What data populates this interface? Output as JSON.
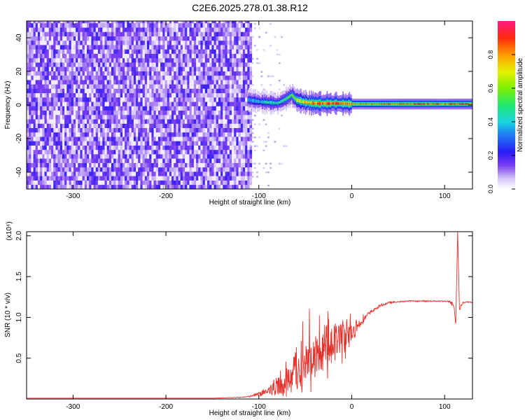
{
  "figure": {
    "title": "C2E6.2025.278.01.38.R12"
  },
  "chart_data": [
    {
      "type": "heatmap",
      "xlabel": "Height of straight line (km)",
      "ylabel": "Frequency (Hz)",
      "xlim": [
        -350,
        130
      ],
      "ylim": [
        -50,
        50
      ],
      "xticks": [
        -300,
        -200,
        -100,
        0,
        100
      ],
      "yticks": [
        -40,
        -20,
        0,
        20,
        40
      ],
      "colorbar": {
        "label": "Normalized spectral amplitude",
        "ticks": [
          "0.0",
          "0.2",
          "0.4",
          "0.6",
          "0.8"
        ],
        "range": [
          0,
          1
        ]
      },
      "noise_region_x": [
        -350,
        -110
      ],
      "ridge": {
        "x": [
          -110,
          -100,
          -90,
          -80,
          -70,
          -65,
          -60,
          -50,
          -40,
          -30,
          -20,
          -10,
          0,
          20,
          40,
          60,
          80,
          100,
          110,
          120,
          130
        ],
        "freq": [
          3,
          2,
          1.5,
          1,
          4,
          6,
          3,
          1.5,
          1,
          0.8,
          1,
          0.8,
          0.6,
          0.6,
          0.6,
          0.6,
          0.6,
          0.6,
          0.6,
          0.6,
          0.6
        ],
        "amplitude": [
          0.4,
          0.45,
          0.5,
          0.5,
          0.55,
          0.6,
          0.7,
          0.85,
          0.95,
          0.95,
          0.95,
          0.9,
          0.85,
          0.85,
          0.9,
          0.95,
          0.95,
          0.9,
          0.95,
          0.95,
          0.95
        ]
      },
      "grid": false
    },
    {
      "type": "line",
      "xlabel": "Height of straight line (km)",
      "ylabel": "SNR (10 * v/v)",
      "y_multiplier": "(x10⁴)",
      "xlim": [
        -350,
        130
      ],
      "ylim": [
        0,
        2.05
      ],
      "xticks": [
        -300,
        -200,
        -100,
        0,
        100
      ],
      "yticks": [
        0.5,
        1.0,
        1.5,
        2.0
      ],
      "color": "#e8302a",
      "series": [
        {
          "x": [
            -350,
            -300,
            -250,
            -200,
            -150,
            -120,
            -110,
            -100,
            -90,
            -80,
            -70,
            -60,
            -50,
            -40,
            -30,
            -20,
            -10,
            0,
            10,
            20,
            30,
            40,
            50,
            60,
            70,
            80,
            90,
            100,
            105,
            110,
            112,
            114,
            116,
            118,
            120,
            125,
            130
          ],
          "y": [
            0.01,
            0.01,
            0.01,
            0.01,
            0.01,
            0.02,
            0.03,
            0.06,
            0.1,
            0.15,
            0.22,
            0.3,
            0.38,
            0.48,
            0.58,
            0.68,
            0.75,
            0.82,
            0.95,
            1.06,
            1.14,
            1.18,
            1.19,
            1.2,
            1.2,
            1.2,
            1.2,
            1.2,
            1.19,
            1.15,
            0.9,
            2.05,
            1.1,
            1.15,
            1.18,
            1.19,
            1.18
          ],
          "noise_amplitude": [
            0,
            0,
            0,
            0,
            0,
            0.005,
            0.01,
            0.04,
            0.1,
            0.2,
            0.28,
            0.35,
            0.4,
            0.42,
            0.42,
            0.4,
            0.35,
            0.2,
            0.08,
            0.03,
            0.02,
            0.015,
            0.01,
            0.01,
            0.01,
            0.01,
            0.01,
            0.01,
            0.02,
            0.05,
            0.1,
            0.05,
            0.05,
            0.02,
            0.01,
            0.01,
            0.01
          ]
        }
      ],
      "grid": false
    }
  ]
}
